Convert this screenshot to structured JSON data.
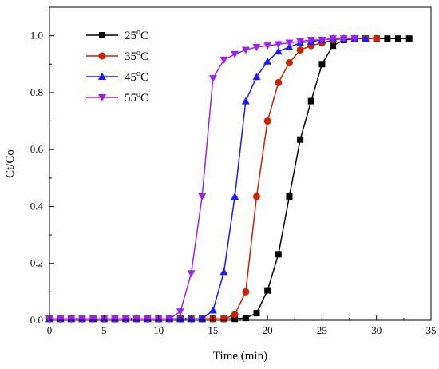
{
  "chart_data": {
    "type": "line",
    "xlabel": "Time (min)",
    "ylabel": "Ct/Co",
    "xlim": [
      0,
      35
    ],
    "ylim": [
      0,
      1.1
    ],
    "x_ticks": [
      "0",
      "5",
      "10",
      "15",
      "20",
      "25",
      "30",
      "35"
    ],
    "y_ticks": [
      "0.0",
      "0.2",
      "0.4",
      "0.6",
      "0.8",
      "1.0"
    ],
    "grid": false,
    "legend_position": "top-left",
    "series": [
      {
        "name": "25°C",
        "label_base": "25",
        "label_sup": "o",
        "label_unit": "C",
        "color": "#000000",
        "marker": "square",
        "x": [
          0,
          1,
          2,
          3,
          4,
          5,
          6,
          7,
          8,
          9,
          10,
          11,
          12,
          13,
          14,
          15,
          16,
          17,
          18,
          19,
          20,
          21,
          22,
          23,
          24,
          25,
          26,
          27,
          28,
          29,
          30,
          31,
          32,
          33
        ],
        "y": [
          0.005,
          0.005,
          0.005,
          0.005,
          0.005,
          0.005,
          0.005,
          0.005,
          0.005,
          0.005,
          0.005,
          0.005,
          0.005,
          0.005,
          0.005,
          0.005,
          0.005,
          0.005,
          0.008,
          0.025,
          0.105,
          0.232,
          0.435,
          0.635,
          0.77,
          0.9,
          0.965,
          0.985,
          0.99,
          0.99,
          0.99,
          0.99,
          0.99,
          0.99
        ]
      },
      {
        "name": "35°C",
        "label_base": "35",
        "label_sup": "o",
        "label_unit": "C",
        "color": "#cc2200",
        "marker": "circle",
        "x": [
          0,
          1,
          2,
          3,
          4,
          5,
          6,
          7,
          8,
          9,
          10,
          11,
          12,
          13,
          14,
          15,
          16,
          17,
          18,
          19,
          20,
          21,
          22,
          23,
          24,
          25,
          26,
          27,
          28,
          29,
          30
        ],
        "y": [
          0.005,
          0.005,
          0.005,
          0.005,
          0.005,
          0.005,
          0.005,
          0.005,
          0.005,
          0.005,
          0.005,
          0.005,
          0.005,
          0.005,
          0.005,
          0.005,
          0.005,
          0.02,
          0.1,
          0.435,
          0.7,
          0.835,
          0.905,
          0.95,
          0.965,
          0.975,
          0.985,
          0.99,
          0.99,
          0.99,
          0.99
        ]
      },
      {
        "name": "45°C",
        "label_base": "45",
        "label_sup": "o",
        "label_unit": "C",
        "color": "#1a1aff",
        "marker": "triangle-up",
        "x": [
          0,
          1,
          2,
          3,
          4,
          5,
          6,
          7,
          8,
          9,
          10,
          11,
          12,
          13,
          14,
          15,
          16,
          17,
          18,
          19,
          20,
          21,
          22,
          23,
          24,
          25,
          26,
          27,
          28,
          29
        ],
        "y": [
          0.005,
          0.005,
          0.005,
          0.005,
          0.005,
          0.005,
          0.005,
          0.005,
          0.005,
          0.005,
          0.005,
          0.005,
          0.005,
          0.005,
          0.005,
          0.035,
          0.17,
          0.435,
          0.77,
          0.855,
          0.91,
          0.945,
          0.96,
          0.975,
          0.98,
          0.985,
          0.99,
          0.99,
          0.99,
          0.99
        ]
      },
      {
        "name": "55°C",
        "label_base": "55",
        "label_sup": "o",
        "label_unit": "C",
        "color": "#a020f0",
        "marker": "triangle-down",
        "x": [
          0,
          1,
          2,
          3,
          4,
          5,
          6,
          7,
          8,
          9,
          10,
          11,
          12,
          13,
          14,
          15,
          16,
          17,
          18,
          19,
          20,
          21,
          22,
          23,
          24,
          25,
          26,
          27,
          28
        ],
        "y": [
          0.005,
          0.005,
          0.005,
          0.005,
          0.005,
          0.005,
          0.005,
          0.005,
          0.005,
          0.005,
          0.005,
          0.005,
          0.03,
          0.165,
          0.435,
          0.85,
          0.915,
          0.935,
          0.95,
          0.96,
          0.965,
          0.97,
          0.975,
          0.98,
          0.985,
          0.985,
          0.99,
          0.99,
          0.99
        ]
      }
    ]
  }
}
